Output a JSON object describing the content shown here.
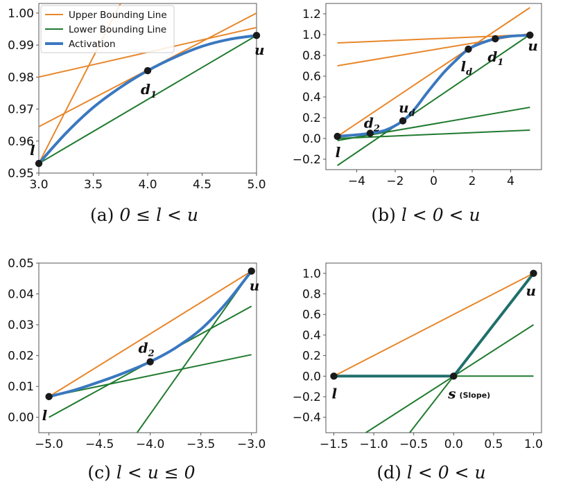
{
  "colors": {
    "upper": "#E8862A",
    "lower": "#1F7A2E",
    "activation": "#3A78C0",
    "point": "#1a1a1a",
    "axis": "#555555"
  },
  "legend": {
    "upper": "Upper Bounding Line",
    "lower": "Lower Bounding Line",
    "activation": "Activation"
  },
  "captions": {
    "a": {
      "prefix": "(a) ",
      "math": "0 ≤ l < u"
    },
    "b": {
      "prefix": "(b) ",
      "math": "l < 0 < u"
    },
    "c": {
      "prefix": "(c) ",
      "math": "l < u ≤ 0"
    },
    "d": {
      "prefix": "(d) ",
      "math": "l < 0 < u"
    }
  },
  "chart_data": [
    {
      "id": "a",
      "type": "line",
      "title": "(a) 0 ≤ l < u",
      "xlim": [
        3.0,
        5.0
      ],
      "ylim": [
        0.95,
        1.003
      ],
      "xticks": [
        3.0,
        3.5,
        4.0,
        4.5,
        5.0
      ],
      "xtick_labels": [
        "3.0",
        "3.5",
        "4.0",
        "4.5",
        "5.0"
      ],
      "yticks": [
        0.95,
        0.96,
        0.97,
        0.98,
        0.99,
        1.0
      ],
      "ytick_labels": [
        "0.95",
        "0.96",
        "0.97",
        "0.98",
        "0.99",
        "1.00"
      ],
      "legend": [
        "Upper Bounding Line",
        "Lower Bounding Line",
        "Activation"
      ],
      "activation": {
        "name": "Activation",
        "x": [
          3.0,
          3.25,
          3.5,
          3.75,
          4.0,
          4.25,
          4.5,
          4.75,
          5.0
        ],
        "y": [
          0.953,
          0.9625,
          0.9705,
          0.9768,
          0.982,
          0.9862,
          0.9896,
          0.9918,
          0.993
        ]
      },
      "upper_lines": [
        {
          "x": [
            3.0,
            5.0
          ],
          "y": [
            0.9645,
            1.0
          ]
        },
        {
          "x": [
            3.0,
            5.0
          ],
          "y": [
            0.98,
            0.9955
          ]
        },
        {
          "x": [
            3.0,
            3.75
          ],
          "y": [
            0.953,
            1.003
          ]
        }
      ],
      "lower_lines": [
        {
          "x": [
            3.0,
            5.0
          ],
          "y": [
            0.953,
            0.993
          ]
        }
      ],
      "points": [
        {
          "x": 3.0,
          "y": 0.953,
          "label": "l"
        },
        {
          "x": 4.0,
          "y": 0.982,
          "label": "d",
          "sub": "1"
        },
        {
          "x": 5.0,
          "y": 0.993,
          "label": "u"
        }
      ]
    },
    {
      "id": "b",
      "type": "line",
      "title": "(b) l < 0 < u",
      "xlim": [
        -5.6,
        5.6
      ],
      "ylim": [
        -0.3,
        1.3
      ],
      "xticks": [
        -4,
        -2,
        0,
        2,
        4
      ],
      "xtick_labels": [
        "−4",
        "−2",
        "0",
        "2",
        "4"
      ],
      "yticks": [
        -0.2,
        0.0,
        0.2,
        0.4,
        0.6,
        0.8,
        1.0,
        1.2
      ],
      "ytick_labels": [
        "−0.2",
        "0.0",
        "0.2",
        "0.4",
        "0.6",
        "0.8",
        "1.0",
        "1.2"
      ],
      "activation": {
        "name": "Activation",
        "x": [
          -5.0,
          -4.0,
          -3.3,
          -2.5,
          -1.6,
          -1.0,
          -0.3,
          0.5,
          1.2,
          1.8,
          2.5,
          3.2,
          4.0,
          5.0
        ],
        "y": [
          0.02,
          0.035,
          0.05,
          0.08,
          0.17,
          0.28,
          0.45,
          0.63,
          0.76,
          0.86,
          0.92,
          0.96,
          0.985,
          0.995
        ]
      },
      "upper_lines": [
        {
          "x": [
            -5.0,
            5.0
          ],
          "y": [
            0.02,
            1.26
          ]
        },
        {
          "x": [
            -5.0,
            5.0
          ],
          "y": [
            0.92,
            1.0
          ]
        },
        {
          "x": [
            -5.0,
            5.0
          ],
          "y": [
            0.7,
            1.01
          ]
        }
      ],
      "lower_lines": [
        {
          "x": [
            -5.0,
            5.0
          ],
          "y": [
            -0.26,
            1.0
          ]
        },
        {
          "x": [
            -5.0,
            5.0
          ],
          "y": [
            -0.02,
            0.3
          ]
        },
        {
          "x": [
            -5.0,
            5.0
          ],
          "y": [
            0.0,
            0.08
          ]
        }
      ],
      "points": [
        {
          "x": -5.0,
          "y": 0.02,
          "label": "l"
        },
        {
          "x": -3.3,
          "y": 0.05,
          "label": "d",
          "sub": "2"
        },
        {
          "x": -1.6,
          "y": 0.17,
          "label": "u",
          "sub": "d"
        },
        {
          "x": 1.8,
          "y": 0.86,
          "label": "l",
          "sub": "d"
        },
        {
          "x": 3.2,
          "y": 0.96,
          "label": "d",
          "sub": "1"
        },
        {
          "x": 5.0,
          "y": 0.995,
          "label": "u"
        }
      ]
    },
    {
      "id": "c",
      "type": "line",
      "title": "(c) l < u ≤ 0",
      "xlim": [
        -5.1,
        -2.95
      ],
      "ylim": [
        -0.005,
        0.05
      ],
      "xticks": [
        -5.0,
        -4.5,
        -4.0,
        -3.5,
        -3.0
      ],
      "xtick_labels": [
        "−5.0",
        "−4.5",
        "−4.0",
        "−3.5",
        "−3.0"
      ],
      "yticks": [
        0.0,
        0.01,
        0.02,
        0.03,
        0.04,
        0.05
      ],
      "ytick_labels": [
        "0.00",
        "0.01",
        "0.02",
        "0.03",
        "0.04",
        "0.05"
      ],
      "activation": {
        "name": "Activation",
        "x": [
          -5.0,
          -4.75,
          -4.5,
          -4.25,
          -4.0,
          -3.75,
          -3.5,
          -3.25,
          -3.0
        ],
        "y": [
          0.0067,
          0.0088,
          0.0115,
          0.0145,
          0.018,
          0.0225,
          0.0285,
          0.037,
          0.0474
        ]
      },
      "upper_lines": [
        {
          "x": [
            -5.0,
            -3.0
          ],
          "y": [
            0.0067,
            0.0474
          ]
        }
      ],
      "lower_lines": [
        {
          "x": [
            -5.0,
            -3.0
          ],
          "y": [
            0.0,
            0.036
          ]
        },
        {
          "x": [
            -5.0,
            -3.0
          ],
          "y": [
            0.0067,
            0.0203
          ]
        },
        {
          "x": [
            -4.13,
            -3.0
          ],
          "y": [
            -0.005,
            0.0474
          ]
        }
      ],
      "points": [
        {
          "x": -5.0,
          "y": 0.0067,
          "label": "l"
        },
        {
          "x": -4.0,
          "y": 0.018,
          "label": "d",
          "sub": "2"
        },
        {
          "x": -3.0,
          "y": 0.0474,
          "label": "u"
        }
      ]
    },
    {
      "id": "d",
      "type": "line",
      "title": "(d) l < 0 < u",
      "xlim": [
        -1.6,
        1.1
      ],
      "ylim": [
        -0.55,
        1.1
      ],
      "xticks": [
        -1.5,
        -1.0,
        -0.5,
        0.0,
        0.5,
        1.0
      ],
      "xtick_labels": [
        "−1.5",
        "−1.0",
        "−0.5",
        "0.0",
        "0.5",
        "1.0"
      ],
      "yticks": [
        -0.4,
        -0.2,
        0.0,
        0.2,
        0.4,
        0.6,
        0.8,
        1.0
      ],
      "ytick_labels": [
        "−0.4",
        "−0.2",
        "0.0",
        "0.2",
        "0.4",
        "0.6",
        "0.8",
        "1.0"
      ],
      "activation": {
        "name": "Activation",
        "x": [
          -1.5,
          0.0,
          1.0
        ],
        "y": [
          0.0,
          0.0,
          1.0
        ]
      },
      "upper_lines": [
        {
          "x": [
            -1.5,
            1.0
          ],
          "y": [
            0.0,
            1.0
          ]
        }
      ],
      "lower_lines": [
        {
          "x": [
            -1.5,
            1.0
          ],
          "y": [
            0.0,
            0.0
          ]
        },
        {
          "x": [
            -1.1,
            1.0
          ],
          "y": [
            -0.55,
            0.5
          ]
        },
        {
          "x": [
            -0.55,
            1.0
          ],
          "y": [
            -0.55,
            1.0
          ]
        }
      ],
      "points": [
        {
          "x": -1.5,
          "y": 0.0,
          "label": "l"
        },
        {
          "x": 0.0,
          "y": 0.0,
          "label": "s",
          "note": "(Slope)"
        },
        {
          "x": 1.0,
          "y": 1.0,
          "label": "u"
        }
      ]
    }
  ]
}
